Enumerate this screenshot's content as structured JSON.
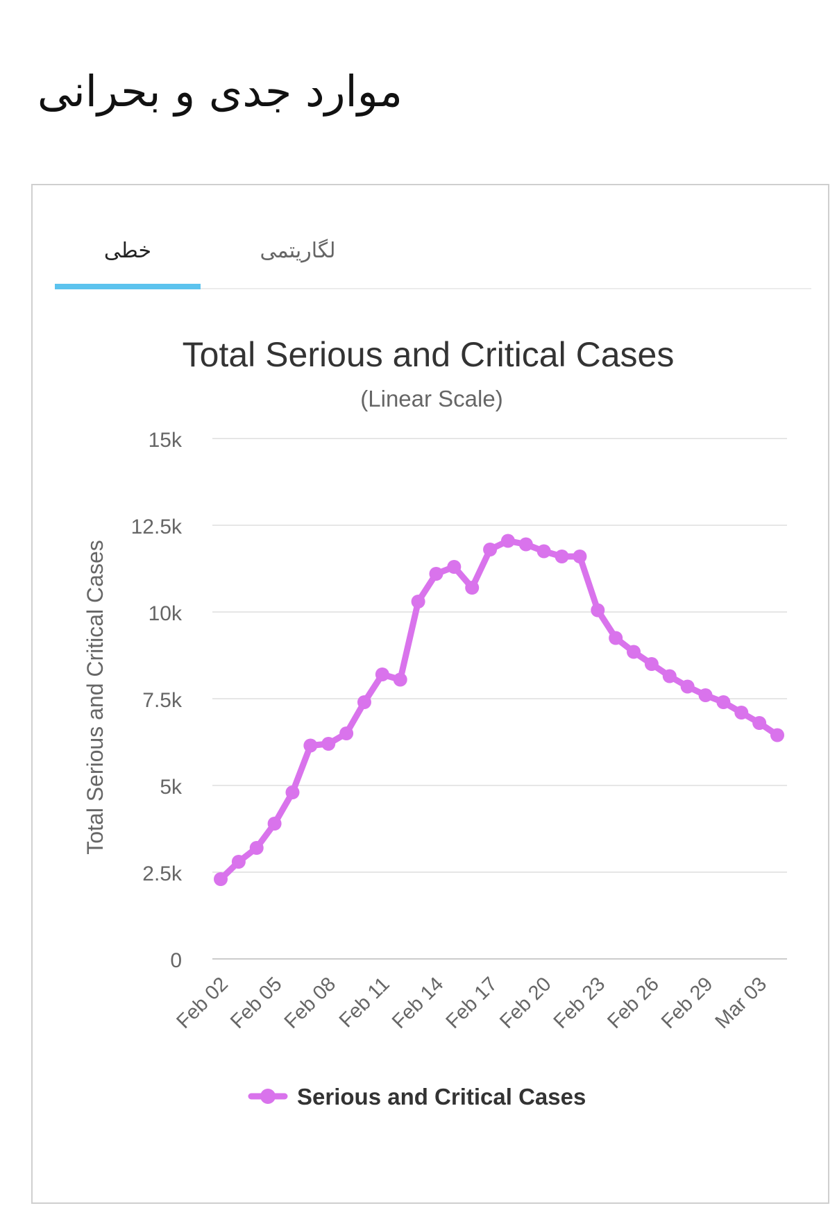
{
  "page": {
    "title": "موارد جدی و بحرانی"
  },
  "tabs": [
    {
      "label": "خطی",
      "active": true
    },
    {
      "label": "لگاریتمی",
      "active": false
    }
  ],
  "colors": {
    "accent": "#5cc3ee",
    "series": "#d973ec",
    "grid": "#e6e6e6"
  },
  "chart_data": {
    "type": "line",
    "title": "Total Serious and Critical Cases",
    "subtitle": "(Linear Scale)",
    "ylabel": "Total Serious and Critical Cases",
    "xlabel": "",
    "ylim": [
      0,
      15000
    ],
    "yticks": [
      0,
      2500,
      5000,
      7500,
      10000,
      12500,
      15000
    ],
    "ytick_labels": [
      "0",
      "2.5k",
      "5k",
      "7.5k",
      "10k",
      "12.5k",
      "15k"
    ],
    "x": [
      "Feb 02",
      "Feb 03",
      "Feb 04",
      "Feb 05",
      "Feb 06",
      "Feb 07",
      "Feb 08",
      "Feb 09",
      "Feb 10",
      "Feb 11",
      "Feb 12",
      "Feb 13",
      "Feb 14",
      "Feb 15",
      "Feb 16",
      "Feb 17",
      "Feb 18",
      "Feb 19",
      "Feb 20",
      "Feb 21",
      "Feb 22",
      "Feb 23",
      "Feb 24",
      "Feb 25",
      "Feb 26",
      "Feb 27",
      "Feb 28",
      "Feb 29",
      "Mar 01",
      "Mar 02",
      "Mar 03",
      "Mar 04"
    ],
    "xtick_labels": [
      "Feb 02",
      "Feb 05",
      "Feb 08",
      "Feb 11",
      "Feb 14",
      "Feb 17",
      "Feb 20",
      "Feb 23",
      "Feb 26",
      "Feb 29",
      "Mar 03"
    ],
    "series": [
      {
        "name": "Serious and Critical Cases",
        "values": [
          2300,
          2800,
          3200,
          3900,
          4800,
          6150,
          6200,
          6500,
          7400,
          8200,
          8050,
          10300,
          11100,
          11300,
          10700,
          11800,
          12050,
          11950,
          11750,
          11600,
          11600,
          10050,
          9250,
          8850,
          8500,
          8150,
          7850,
          7600,
          7400,
          7100,
          6800,
          6450
        ]
      }
    ],
    "legend": "bottom-center"
  }
}
